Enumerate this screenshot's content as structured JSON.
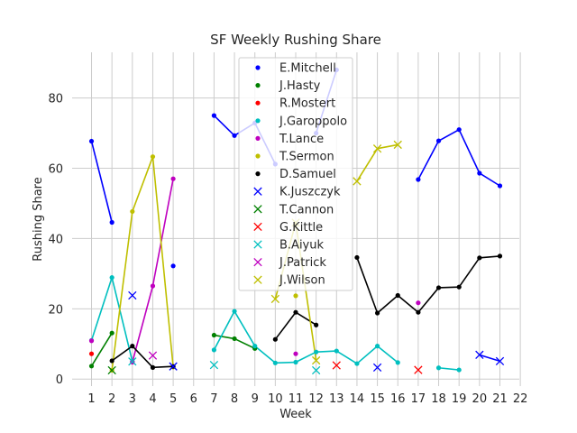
{
  "chart_data": {
    "type": "line",
    "title": "SF Weekly Rushing Share",
    "xlabel": "Week",
    "ylabel": "Rushing Share",
    "xlim": [
      0.05,
      21.95
    ],
    "ylim": [
      -2,
      93
    ],
    "xticks": [
      "1",
      "2",
      "3",
      "4",
      "5",
      "6",
      "7",
      "8",
      "9",
      "10",
      "11",
      "12",
      "13",
      "14",
      "15",
      "16",
      "17",
      "18",
      "19",
      "20",
      "21",
      "22"
    ],
    "yticks": [
      "0",
      "20",
      "40",
      "60",
      "80"
    ],
    "grid": true,
    "legend_position": "upper-center",
    "series": [
      {
        "name": "E.Mitchell",
        "color": "#0000ff",
        "marker": "dot",
        "x": [
          1,
          2,
          3,
          5,
          7,
          8,
          9,
          10,
          11,
          12,
          13,
          17,
          18,
          19,
          20,
          21
        ],
        "y": [
          67.7,
          44.6,
          null,
          32.2,
          75,
          69.3,
          72.9,
          61.2,
          null,
          70,
          88,
          56.8,
          67.8,
          71,
          58.6,
          55
        ]
      },
      {
        "name": "J.Hasty",
        "color": "#008000",
        "marker": "dot",
        "x": [
          1,
          2,
          7,
          8,
          9
        ],
        "y": [
          3.7,
          13.1,
          12.5,
          11.5,
          8.7
        ]
      },
      {
        "name": "R.Mostert",
        "color": "#ff0000",
        "marker": "dot",
        "x": [
          1
        ],
        "y": [
          7.2
        ]
      },
      {
        "name": "J.Garoppolo",
        "color": "#00bfbf",
        "marker": "dot",
        "x": [
          1,
          2,
          3,
          7,
          8,
          9,
          10,
          11,
          12,
          13,
          14,
          15,
          16,
          18,
          19
        ],
        "y": [
          11,
          28.9,
          5,
          8.3,
          19.3,
          9.4,
          4.6,
          4.8,
          7.7,
          8,
          4.4,
          9.4,
          4.7,
          3.2,
          2.6
        ]
      },
      {
        "name": "T.Lance",
        "color": "#bf00bf",
        "marker": "dot",
        "x": [
          1,
          3,
          4,
          5,
          11,
          17
        ],
        "y": [
          10.9,
          4.8,
          26.5,
          57,
          7.2,
          21.7
        ]
      },
      {
        "name": "T.Sermon",
        "color": "#bfbf00",
        "marker": "dot",
        "x": [
          2,
          3,
          4,
          5,
          11,
          12
        ],
        "y": [
          2.5,
          47.7,
          63.3,
          3.4,
          23.7,
          null
        ]
      },
      {
        "name": "D.Samuel",
        "color": "#000000",
        "marker": "dot",
        "x": [
          2,
          3,
          4,
          5,
          10,
          11,
          12,
          14,
          15,
          16,
          17,
          18,
          19,
          20,
          21
        ],
        "y": [
          5.2,
          9.4,
          3.3,
          3.6,
          11.3,
          19,
          15.4,
          34.6,
          18.8,
          23.8,
          19,
          26,
          26.2,
          34.5,
          35
        ]
      },
      {
        "name": "K.Juszczyk",
        "color": "#0000ff",
        "marker": "x",
        "x": [
          3,
          5,
          15,
          20,
          21
        ],
        "y": [
          23.8,
          3.6,
          3.3,
          6.9,
          5.1
        ]
      },
      {
        "name": "T.Cannon",
        "color": "#008000",
        "marker": "x",
        "x": [
          2
        ],
        "y": [
          2.5
        ]
      },
      {
        "name": "G.Kittle",
        "color": "#ff0000",
        "marker": "x",
        "x": [
          13,
          17
        ],
        "y": [
          3.9,
          2.6
        ]
      },
      {
        "name": "B.Aiyuk",
        "color": "#00bfbf",
        "marker": "x",
        "x": [
          3,
          7,
          12
        ],
        "y": [
          5,
          4,
          2.5
        ]
      },
      {
        "name": "J.Patrick",
        "color": "#bf00bf",
        "marker": "x",
        "x": [
          4
        ],
        "y": [
          6.7
        ]
      },
      {
        "name": "J.Wilson",
        "color": "#bfbf00",
        "marker": "x",
        "x": [
          10,
          11,
          12,
          14,
          15,
          16
        ],
        "y": [
          22.8,
          44.5,
          5.3,
          56.3,
          65.6,
          66.7
        ]
      }
    ]
  }
}
